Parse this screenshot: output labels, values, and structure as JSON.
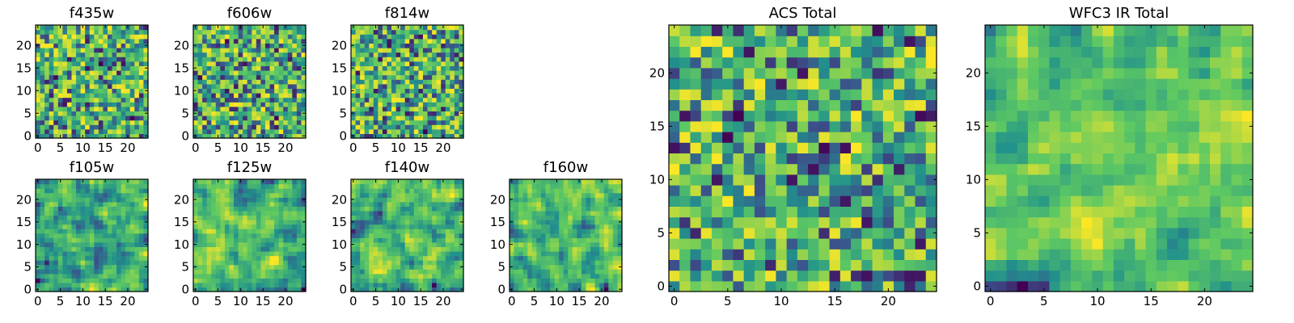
{
  "colormap": [
    "#440154",
    "#3b528b",
    "#21918c",
    "#5ec962",
    "#fde725"
  ],
  "chart_data": [
    {
      "type": "heatmap",
      "title": "f435w",
      "size": 25,
      "seed": 11,
      "smooth": 0,
      "xticks": [
        "0",
        "5",
        "10",
        "15",
        "20"
      ],
      "yticks": [
        "0",
        "5",
        "10",
        "15",
        "20"
      ]
    },
    {
      "type": "heatmap",
      "title": "f606w",
      "size": 25,
      "seed": 23,
      "smooth": 0,
      "xticks": [
        "0",
        "5",
        "10",
        "15",
        "20"
      ],
      "yticks": [
        "0",
        "5",
        "10",
        "15",
        "20"
      ]
    },
    {
      "type": "heatmap",
      "title": "f814w",
      "size": 25,
      "seed": 37,
      "smooth": 0,
      "xticks": [
        "0",
        "5",
        "10",
        "15",
        "20"
      ],
      "yticks": [
        "0",
        "5",
        "10",
        "15",
        "20"
      ]
    },
    {
      "type": "heatmap",
      "title": "f105w",
      "size": 25,
      "seed": 41,
      "smooth": 1,
      "xticks": [
        "0",
        "5",
        "10",
        "15",
        "20"
      ],
      "yticks": [
        "0",
        "5",
        "10",
        "15",
        "20"
      ]
    },
    {
      "type": "heatmap",
      "title": "f125w",
      "size": 25,
      "seed": 53,
      "smooth": 1,
      "xticks": [
        "0",
        "5",
        "10",
        "15",
        "20"
      ],
      "yticks": [
        "0",
        "5",
        "10",
        "15",
        "20"
      ]
    },
    {
      "type": "heatmap",
      "title": "f140w",
      "size": 25,
      "seed": 67,
      "smooth": 1,
      "xticks": [
        "0",
        "5",
        "10",
        "15",
        "20"
      ],
      "yticks": [
        "0",
        "5",
        "10",
        "15",
        "20"
      ]
    },
    {
      "type": "heatmap",
      "title": "f160w",
      "size": 25,
      "seed": 79,
      "smooth": 1,
      "xticks": [
        "0",
        "5",
        "10",
        "15",
        "20"
      ],
      "yticks": [
        "0",
        "5",
        "10",
        "15",
        "20"
      ]
    },
    {
      "type": "heatmap",
      "title": "ACS Total",
      "size": 25,
      "seed": 83,
      "smooth": 0,
      "xticks": [
        "0",
        "5",
        "10",
        "15",
        "20"
      ],
      "yticks": [
        "0",
        "5",
        "10",
        "15",
        "20"
      ]
    },
    {
      "type": "heatmap",
      "title": "WFC3 IR Total",
      "size": 25,
      "seed": 97,
      "smooth": 1,
      "xticks": [
        "0",
        "5",
        "10",
        "15",
        "20"
      ],
      "yticks": [
        "0",
        "5",
        "10",
        "15",
        "20"
      ]
    }
  ]
}
